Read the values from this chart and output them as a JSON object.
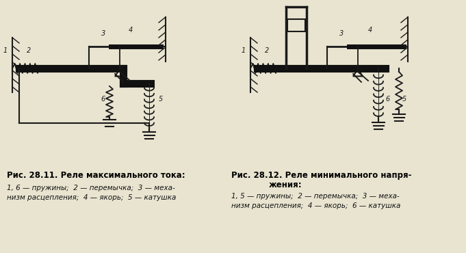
{
  "bg_color": "#e8e4d0",
  "fig_width": 6.81,
  "fig_height": 3.7,
  "dpi": 100,
  "title1": "Рис. 28.11. Реле максимального тока:",
  "caption1_line1": "1, 6 — пружины;  2 — перемычка;  3 — меха-",
  "caption1_line2": "низм расцепления;  4 — якорь;  5 — катушка",
  "title2_line1": "Рис. 28.12. Реле минимального напря-",
  "title2_line2": "жения:",
  "caption2_line1": "1, 5 — пружины;  2 — перемычка;  3 — меха-",
  "caption2_line2": "низм расцепления;  4 — якорь;  6 — катушка",
  "lc": "#1a1a1a",
  "tc": "#111111"
}
